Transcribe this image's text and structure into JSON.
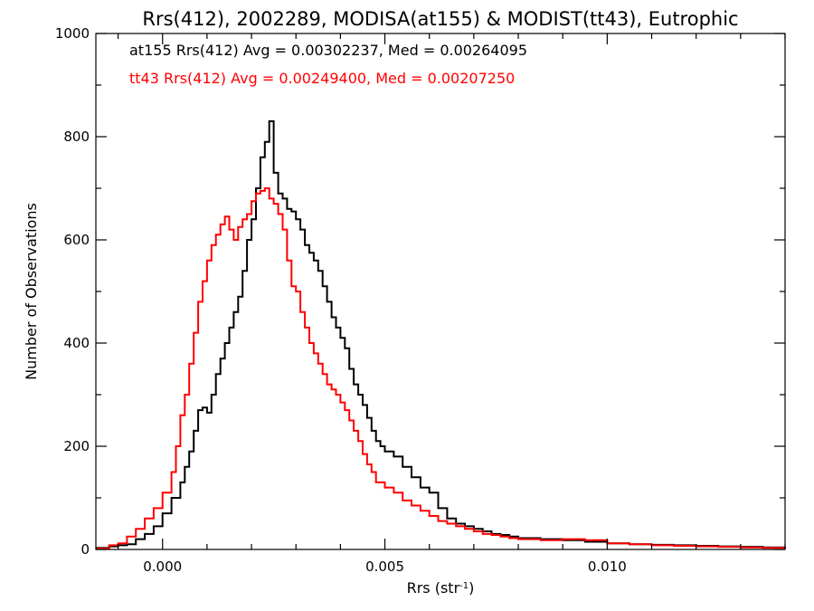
{
  "chart_data": {
    "type": "histogram-step",
    "title": "Rrs(412), 2002289, MODISA(at155) & MODIST(tt43), Eutrophic",
    "xlabel": "Rrs (str",
    "xlabel_sup": "-1",
    "xlabel_end": ")",
    "ylabel": "Number of Observations",
    "xlim": [
      -0.0015,
      0.014
    ],
    "ylim": [
      0,
      1000
    ],
    "xticks": [
      0.0,
      0.005,
      0.01
    ],
    "xtick_labels": [
      "0.000",
      "0.005",
      "0.010"
    ],
    "yticks": [
      0,
      200,
      400,
      600,
      800,
      1000
    ],
    "ytick_labels": [
      "0",
      "200",
      "400",
      "600",
      "800",
      "1000"
    ],
    "annotations": [
      {
        "text": "at155 Rrs(412) Avg = 0.00302237, Med = 0.00264095",
        "color": "#000000"
      },
      {
        "text": "tt43 Rrs(412) Avg = 0.00249400, Med = 0.00207250",
        "color": "#ff0000"
      }
    ],
    "series": [
      {
        "color": "#000000",
        "points": [
          [
            -0.0015,
            3
          ],
          [
            -0.0012,
            6
          ],
          [
            -0.001,
            8
          ],
          [
            -0.0008,
            10
          ],
          [
            -0.0006,
            20
          ],
          [
            -0.0004,
            30
          ],
          [
            -0.0002,
            45
          ],
          [
            0.0,
            70
          ],
          [
            0.0002,
            100
          ],
          [
            0.0004,
            130
          ],
          [
            0.0005,
            160
          ],
          [
            0.0006,
            190
          ],
          [
            0.0007,
            230
          ],
          [
            0.0008,
            270
          ],
          [
            0.0009,
            275
          ],
          [
            0.001,
            265
          ],
          [
            0.0011,
            300
          ],
          [
            0.0012,
            340
          ],
          [
            0.0013,
            370
          ],
          [
            0.0014,
            400
          ],
          [
            0.0015,
            430
          ],
          [
            0.0016,
            460
          ],
          [
            0.0017,
            490
          ],
          [
            0.0018,
            540
          ],
          [
            0.0019,
            600
          ],
          [
            0.002,
            640
          ],
          [
            0.0021,
            700
          ],
          [
            0.0022,
            760
          ],
          [
            0.0023,
            790
          ],
          [
            0.0024,
            830
          ],
          [
            0.0025,
            730
          ],
          [
            0.0026,
            690
          ],
          [
            0.0027,
            680
          ],
          [
            0.0028,
            660
          ],
          [
            0.0029,
            655
          ],
          [
            0.003,
            640
          ],
          [
            0.0031,
            620
          ],
          [
            0.0032,
            590
          ],
          [
            0.0033,
            575
          ],
          [
            0.0034,
            560
          ],
          [
            0.0035,
            540
          ],
          [
            0.0036,
            510
          ],
          [
            0.0037,
            480
          ],
          [
            0.0038,
            450
          ],
          [
            0.0039,
            430
          ],
          [
            0.004,
            410
          ],
          [
            0.0041,
            390
          ],
          [
            0.0042,
            350
          ],
          [
            0.0043,
            320
          ],
          [
            0.0044,
            300
          ],
          [
            0.0045,
            280
          ],
          [
            0.0046,
            255
          ],
          [
            0.0047,
            230
          ],
          [
            0.0048,
            210
          ],
          [
            0.0049,
            200
          ],
          [
            0.005,
            190
          ],
          [
            0.0052,
            180
          ],
          [
            0.0054,
            160
          ],
          [
            0.0056,
            140
          ],
          [
            0.0058,
            120
          ],
          [
            0.006,
            110
          ],
          [
            0.0062,
            80
          ],
          [
            0.0064,
            60
          ],
          [
            0.0066,
            50
          ],
          [
            0.0068,
            45
          ],
          [
            0.007,
            40
          ],
          [
            0.0072,
            35
          ],
          [
            0.0074,
            30
          ],
          [
            0.0076,
            28
          ],
          [
            0.0078,
            25
          ],
          [
            0.008,
            22
          ],
          [
            0.0085,
            20
          ],
          [
            0.009,
            18
          ],
          [
            0.0095,
            15
          ],
          [
            0.01,
            12
          ],
          [
            0.0105,
            10
          ],
          [
            0.011,
            9
          ],
          [
            0.0115,
            8
          ],
          [
            0.012,
            7
          ],
          [
            0.0125,
            6
          ],
          [
            0.013,
            5
          ],
          [
            0.0135,
            4
          ],
          [
            0.014,
            3
          ]
        ]
      },
      {
        "color": "#ff0000",
        "points": [
          [
            -0.0015,
            2
          ],
          [
            -0.0012,
            8
          ],
          [
            -0.001,
            12
          ],
          [
            -0.0008,
            25
          ],
          [
            -0.0006,
            40
          ],
          [
            -0.0004,
            60
          ],
          [
            -0.0002,
            80
          ],
          [
            0.0,
            110
          ],
          [
            0.0002,
            150
          ],
          [
            0.0003,
            200
          ],
          [
            0.0004,
            260
          ],
          [
            0.0005,
            300
          ],
          [
            0.0006,
            360
          ],
          [
            0.0007,
            420
          ],
          [
            0.0008,
            480
          ],
          [
            0.0009,
            520
          ],
          [
            0.001,
            560
          ],
          [
            0.0011,
            590
          ],
          [
            0.0012,
            610
          ],
          [
            0.0013,
            630
          ],
          [
            0.0014,
            645
          ],
          [
            0.0015,
            620
          ],
          [
            0.0016,
            600
          ],
          [
            0.0017,
            625
          ],
          [
            0.0018,
            640
          ],
          [
            0.0019,
            650
          ],
          [
            0.002,
            675
          ],
          [
            0.0021,
            690
          ],
          [
            0.0022,
            695
          ],
          [
            0.0023,
            700
          ],
          [
            0.0024,
            680
          ],
          [
            0.0025,
            670
          ],
          [
            0.0026,
            650
          ],
          [
            0.0027,
            620
          ],
          [
            0.0028,
            560
          ],
          [
            0.0029,
            510
          ],
          [
            0.003,
            500
          ],
          [
            0.0031,
            460
          ],
          [
            0.0032,
            430
          ],
          [
            0.0033,
            400
          ],
          [
            0.0034,
            380
          ],
          [
            0.0035,
            360
          ],
          [
            0.0036,
            340
          ],
          [
            0.0037,
            320
          ],
          [
            0.0038,
            310
          ],
          [
            0.0039,
            300
          ],
          [
            0.004,
            285
          ],
          [
            0.0041,
            270
          ],
          [
            0.0042,
            250
          ],
          [
            0.0043,
            230
          ],
          [
            0.0044,
            210
          ],
          [
            0.0045,
            185
          ],
          [
            0.0046,
            165
          ],
          [
            0.0047,
            150
          ],
          [
            0.0048,
            130
          ],
          [
            0.005,
            120
          ],
          [
            0.0052,
            110
          ],
          [
            0.0054,
            95
          ],
          [
            0.0056,
            85
          ],
          [
            0.0058,
            75
          ],
          [
            0.006,
            65
          ],
          [
            0.0062,
            55
          ],
          [
            0.0064,
            50
          ],
          [
            0.0066,
            45
          ],
          [
            0.0068,
            40
          ],
          [
            0.007,
            35
          ],
          [
            0.0072,
            30
          ],
          [
            0.0074,
            28
          ],
          [
            0.0076,
            25
          ],
          [
            0.0078,
            22
          ],
          [
            0.008,
            20
          ],
          [
            0.0085,
            18
          ],
          [
            0.009,
            20
          ],
          [
            0.0095,
            18
          ],
          [
            0.01,
            12
          ],
          [
            0.0105,
            10
          ],
          [
            0.011,
            8
          ],
          [
            0.0115,
            7
          ],
          [
            0.012,
            6
          ],
          [
            0.0125,
            5
          ],
          [
            0.013,
            4
          ],
          [
            0.0135,
            3
          ],
          [
            0.014,
            2
          ]
        ]
      }
    ]
  }
}
